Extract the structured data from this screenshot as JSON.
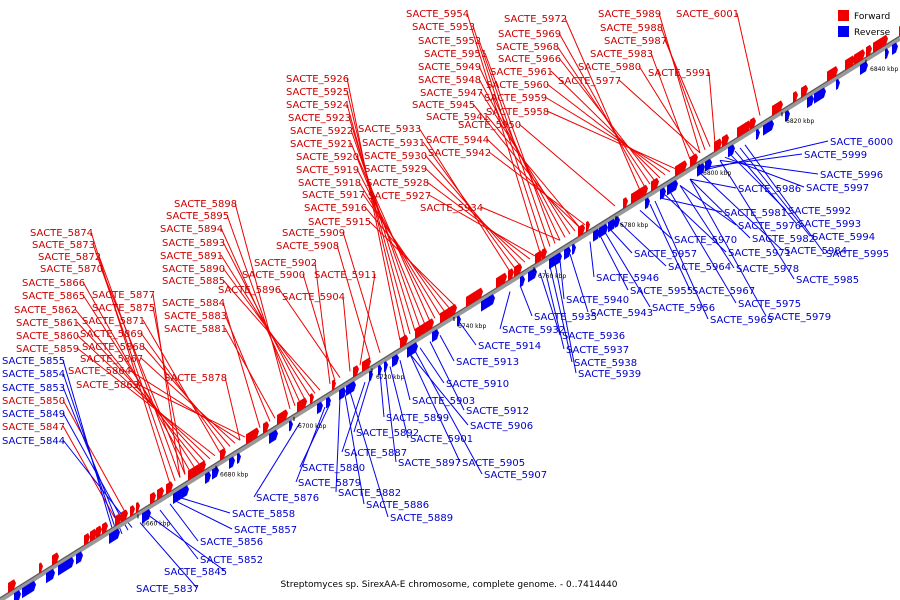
{
  "caption": "Streptomyces sp. SirexAA-E chromosome, complete genome. - 0..7414440",
  "legend": {
    "forward": {
      "label": "Forward",
      "color": "#ee0000"
    },
    "reverse": {
      "label": "Reverse",
      "color": "#0000ee"
    }
  },
  "ticks": [
    "6660 kbp",
    "6680 kbp",
    "6700 kbp",
    "6720 kbp",
    "6740 kbp",
    "6760 kbp",
    "6780 kbp",
    "6800 kbp",
    "6820 kbp",
    "6840 kbp"
  ],
  "forward_labels": [
    "SACTE_5954",
    "SACTE_5953",
    "SACTE_5952",
    "SACTE_5951",
    "SACTE_5949",
    "SACTE_5948",
    "SACTE_5947",
    "SACTE_5945",
    "SACTE_5941",
    "SACTE_5972",
    "SACTE_5969",
    "SACTE_5968",
    "SACTE_5966",
    "SACTE_5961",
    "SACTE_5960",
    "SACTE_5959",
    "SACTE_5958",
    "SACTE_5950",
    "SACTE_5989",
    "SACTE_5988",
    "SACTE_5987",
    "SACTE_5983",
    "SACTE_5980",
    "SACTE_5977",
    "SACTE_6001",
    "SACTE_5991",
    "SACTE_5926",
    "SACTE_5925",
    "SACTE_5924",
    "SACTE_5923",
    "SACTE_5922",
    "SACTE_5921",
    "SACTE_5920",
    "SACTE_5919",
    "SACTE_5918",
    "SACTE_5917",
    "SACTE_5916",
    "SACTE_5915",
    "SACTE_5909",
    "SACTE_5908",
    "SACTE_5933",
    "SACTE_5931",
    "SACTE_5930",
    "SACTE_5929",
    "SACTE_5928",
    "SACTE_5927",
    "SACTE_5944",
    "SACTE_5942",
    "SACTE_5934",
    "SACTE_5898",
    "SACTE_5895",
    "SACTE_5894",
    "SACTE_5893",
    "SACTE_5891",
    "SACTE_5890",
    "SACTE_5885",
    "SACTE_5884",
    "SACTE_5883",
    "SACTE_5881",
    "SACTE_5902",
    "SACTE_5900",
    "SACTE_5896",
    "SACTE_5911",
    "SACTE_5904",
    "SACTE_5874",
    "SACTE_5873",
    "SACTE_5872",
    "SACTE_5870",
    "SACTE_5866",
    "SACTE_5865",
    "SACTE_5862",
    "SACTE_5861",
    "SACTE_5860",
    "SACTE_5859",
    "SACTE_5877",
    "SACTE_5875",
    "SACTE_5871",
    "SACTE_5869",
    "SACTE_5868",
    "SACTE_5867",
    "SACTE_5864",
    "SACTE_5863",
    "SACTE_5878",
    "SACTE_5850",
    "SACTE_5847"
  ],
  "reverse_labels": [
    "SACTE_6000",
    "SACTE_5999",
    "SACTE_5996",
    "SACTE_5997",
    "SACTE_5986",
    "SACTE_5992",
    "SACTE_5993",
    "SACTE_5981",
    "SACTE_5994",
    "SACTE_5995",
    "SACTE_5976",
    "SACTE_5982",
    "SACTE_5970",
    "SACTE_5971",
    "SACTE_5984",
    "SACTE_5957",
    "SACTE_5964",
    "SACTE_5978",
    "SACTE_5946",
    "SACTE_5985",
    "SACTE_5955",
    "SACTE_5967",
    "SACTE_5940",
    "SACTE_5956",
    "SACTE_5975",
    "SACTE_5943",
    "SACTE_5965",
    "SACTE_5979",
    "SACTE_5935",
    "SACTE_5932",
    "SACTE_5936",
    "SACTE_5914",
    "SACTE_5937",
    "SACTE_5913",
    "SACTE_5938",
    "SACTE_5939",
    "SACTE_5910",
    "SACTE_5903",
    "SACTE_5912",
    "SACTE_5899",
    "SACTE_5906",
    "SACTE_5892",
    "SACTE_5901",
    "SACTE_5887",
    "SACTE_5897",
    "SACTE_5905",
    "SACTE_5880",
    "SACTE_5907",
    "SACTE_5879",
    "SACTE_5882",
    "SACTE_5876",
    "SACTE_5886",
    "SACTE_5889",
    "SACTE_5858",
    "SACTE_5857",
    "SACTE_5856",
    "SACTE_5852",
    "SACTE_5845",
    "SACTE_5837",
    "SACTE_5855",
    "SACTE_5854",
    "SACTE_5853",
    "SACTE_5849",
    "SACTE_5844"
  ]
}
